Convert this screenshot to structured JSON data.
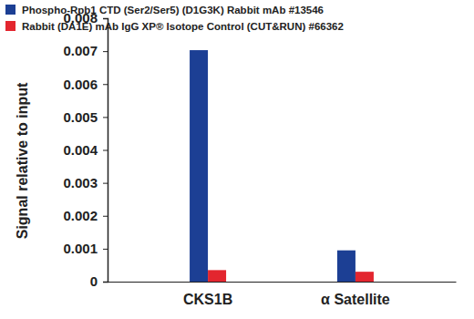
{
  "chart_data": {
    "type": "bar",
    "y_label": "Signal relative to input",
    "categories": [
      "CKS1B",
      "α Satellite"
    ],
    "series": [
      {
        "name": "Phospho-Rpb1 CTD (Ser2/Ser5) (D1G3K) Rabbit mAb #13546",
        "color": "#1c3f94",
        "values": [
          0.00703,
          0.00095
        ]
      },
      {
        "name": "Rabbit (DA1E) mAb IgG XP® Isotope Control (CUT&RUN) #66362",
        "color": "#e3262f",
        "values": [
          0.00035,
          0.0003
        ]
      }
    ],
    "ylim": [
      0,
      0.008
    ],
    "yticks": [
      0,
      0.001,
      0.002,
      0.003,
      0.004,
      0.005,
      0.006,
      0.007,
      0.008
    ],
    "grid": false,
    "legend": "top-left"
  }
}
